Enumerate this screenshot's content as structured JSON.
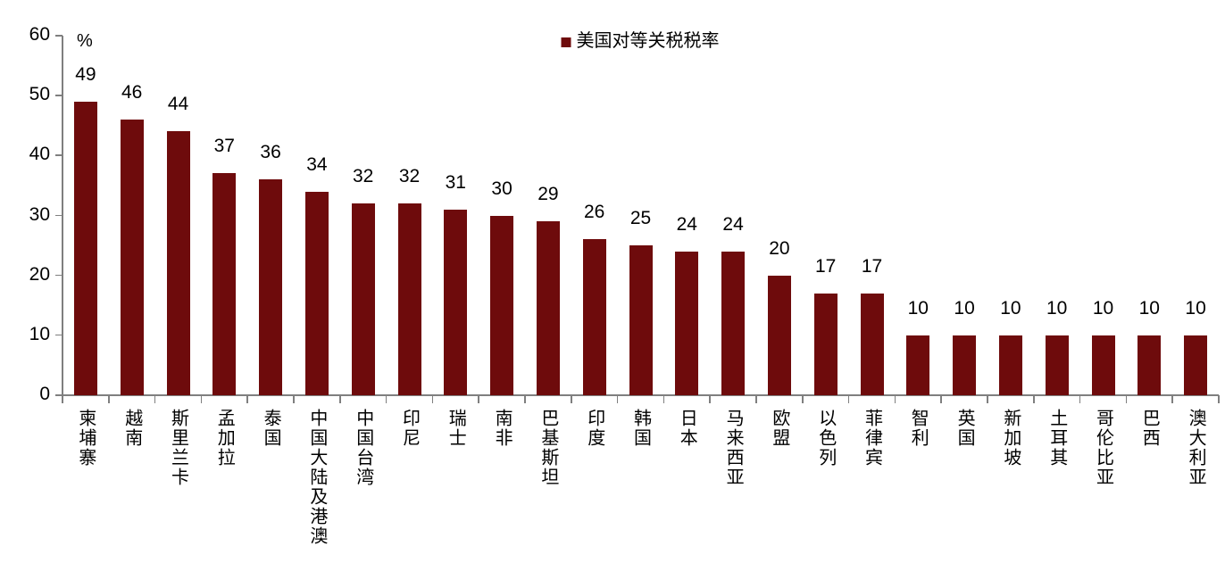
{
  "chart_data": {
    "type": "bar",
    "title": "",
    "legend_label": "美国对等关税税率",
    "legend_position": "top-center",
    "unit_label": "%",
    "categories": [
      "柬埔寨",
      "越南",
      "斯里兰卡",
      "孟加拉",
      "泰国",
      "中国大陆及港澳",
      "中国台湾",
      "印尼",
      "瑞士",
      "南非",
      "巴基斯坦",
      "印度",
      "韩国",
      "日本",
      "马来西亚",
      "欧盟",
      "以色列",
      "菲律宾",
      "智利",
      "英国",
      "新加坡",
      "土耳其",
      "哥伦比亚",
      "巴西",
      "澳大利亚"
    ],
    "values": [
      49,
      46,
      44,
      37,
      36,
      34,
      32,
      32,
      31,
      30,
      29,
      26,
      25,
      24,
      24,
      20,
      17,
      17,
      10,
      10,
      10,
      10,
      10,
      10,
      10
    ],
    "ylim": [
      0,
      60
    ],
    "yticks": [
      0,
      10,
      20,
      30,
      40,
      50,
      60
    ],
    "grid": false,
    "value_labels_shown": true,
    "bar_color": "#6E0B0C",
    "axis_color": "#7F7F7F",
    "text_color": "#000000"
  }
}
